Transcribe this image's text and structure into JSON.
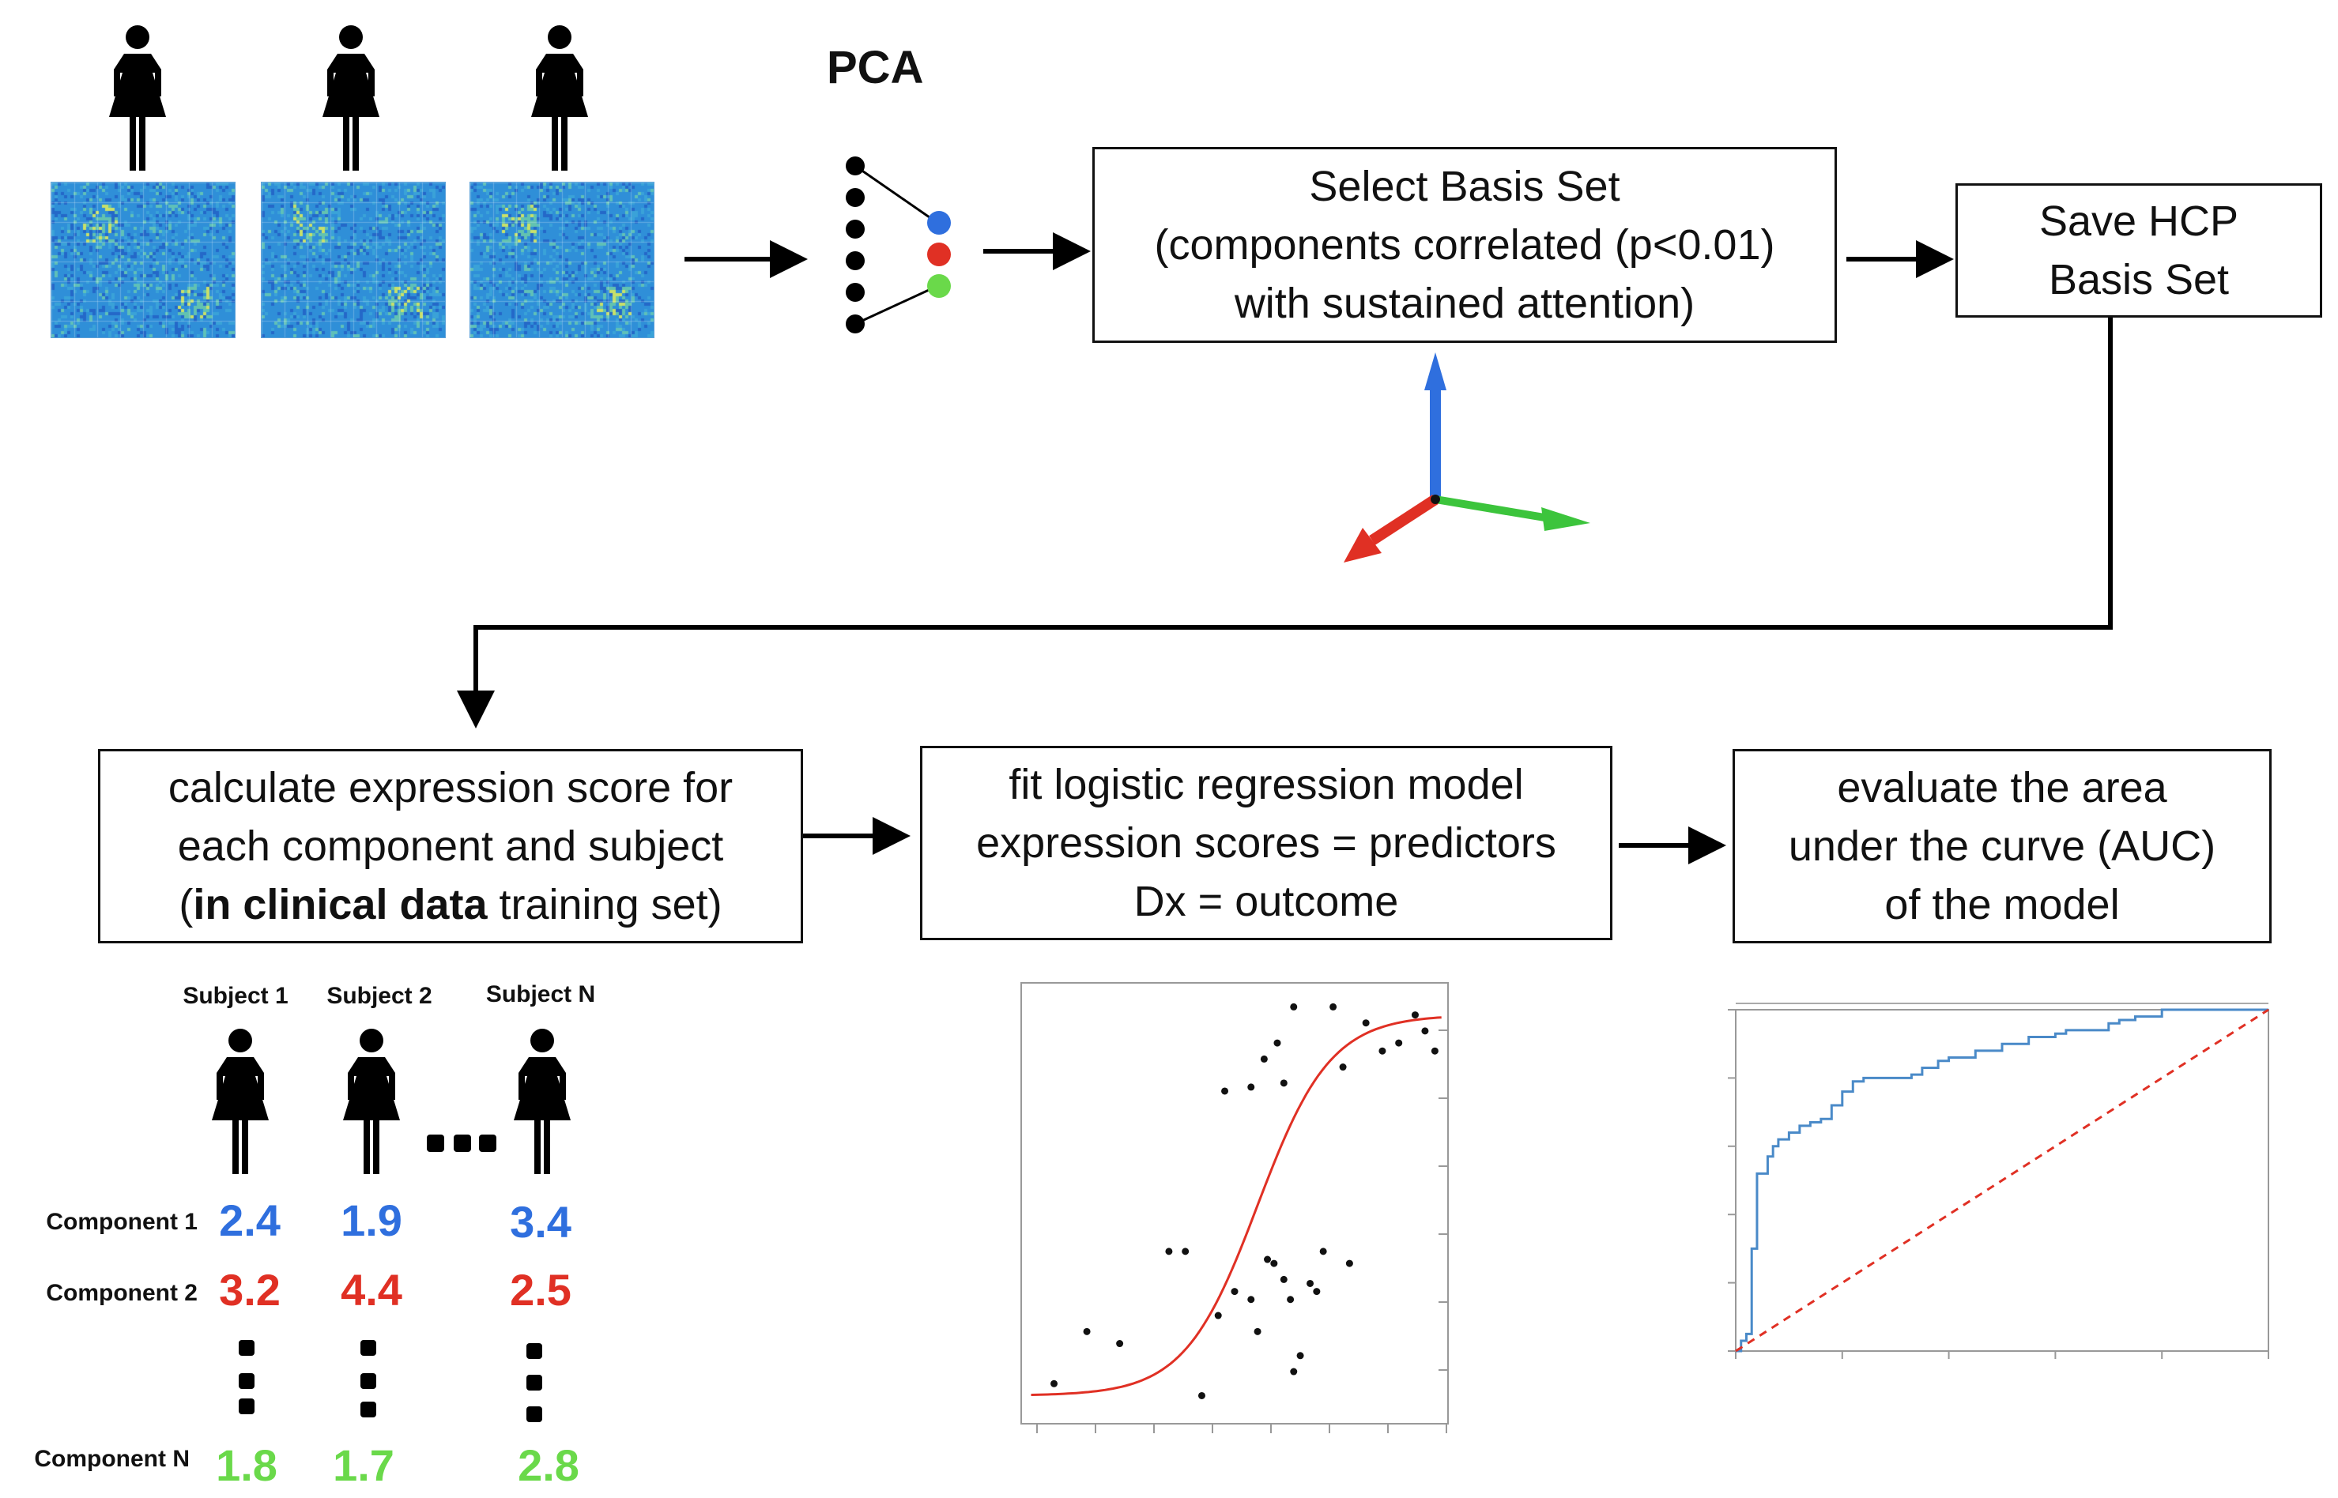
{
  "pca": {
    "title": "PCA"
  },
  "boxes": {
    "select_basis": {
      "lines": [
        "Select Basis Set",
        "(components correlated (p<0.01)",
        "with sustained attention)"
      ]
    },
    "save_hcp": {
      "lines": [
        "Save HCP",
        "Basis Set"
      ]
    },
    "calc_expr": {
      "line1": "calculate expression score for",
      "line2": "each component and subject",
      "line3_pre": "(",
      "line3_bold": "in clinical data",
      "line3_post": " training set)"
    },
    "fit_model": {
      "lines": [
        "fit logistic regression model",
        "expression scores = predictors",
        "Dx = outcome"
      ]
    },
    "evaluate": {
      "lines": [
        "evaluate the area",
        "under the curve (AUC)",
        "of the model"
      ]
    }
  },
  "subjects": [
    "Subject 1",
    "Subject 2",
    "Subject N"
  ],
  "components": [
    {
      "label": "Component 1",
      "values": [
        "2.4",
        "1.9",
        "3.4"
      ],
      "color": "#2f6fde"
    },
    {
      "label": "Component 2",
      "values": [
        "3.2",
        "4.4",
        "2.5"
      ],
      "color": "#e03024"
    },
    {
      "label": "Component N",
      "values": [
        "1.8",
        "1.7",
        "2.8"
      ],
      "color": "#6ad94a"
    }
  ],
  "colors": {
    "blue": "#2f6fde",
    "red": "#e03024",
    "green": "#6ad94a",
    "heatmap_base": "#2f8fd8"
  },
  "icons": [
    "person-icon",
    "arrow-right-icon",
    "arrow-down-icon",
    "axes-3d-icon"
  ],
  "chart_data": [
    {
      "type": "scatter",
      "title": "",
      "xlabel": "",
      "ylabel": "",
      "series": [
        {
          "points": [
            [
              1,
              0.05
            ],
            [
              2,
              0.18
            ],
            [
              3,
              0.15
            ],
            [
              4.5,
              0.38
            ],
            [
              5,
              0.38
            ],
            [
              5.5,
              0.02
            ],
            [
              6,
              0.22
            ],
            [
              6.5,
              0.28
            ],
            [
              7,
              0.26
            ],
            [
              7.2,
              0.18
            ],
            [
              7.5,
              0.36
            ],
            [
              7.7,
              0.35
            ],
            [
              8,
              0.31
            ],
            [
              8.2,
              0.26
            ],
            [
              8.3,
              0.08
            ],
            [
              8.5,
              0.12
            ],
            [
              8.8,
              0.3
            ],
            [
              9,
              0.28
            ],
            [
              9.2,
              0.38
            ],
            [
              10,
              0.35
            ],
            [
              6.2,
              0.78
            ],
            [
              7.0,
              0.79
            ],
            [
              7.4,
              0.86
            ],
            [
              7.8,
              0.9
            ],
            [
              8.0,
              0.8
            ],
            [
              8.3,
              0.99
            ],
            [
              9.5,
              0.99
            ],
            [
              9.8,
              0.84
            ],
            [
              10.5,
              0.95
            ],
            [
              11,
              0.88
            ],
            [
              11.5,
              0.9
            ],
            [
              12,
              0.97
            ],
            [
              12.3,
              0.93
            ],
            [
              12.6,
              0.88
            ]
          ]
        }
      ],
      "curve": {
        "type": "logistic",
        "color": "#e03024"
      }
    },
    {
      "type": "line",
      "title": "",
      "xlabel": "",
      "ylabel": "",
      "series": [
        {
          "name": "",
          "color": "#4a8ac8",
          "x": [
            0,
            0.01,
            0.02,
            0.03,
            0.04,
            0.05,
            0.06,
            0.07,
            0.08,
            0.09,
            0.1,
            0.12,
            0.14,
            0.16,
            0.18,
            0.2,
            0.22,
            0.24,
            0.25,
            0.27,
            0.3,
            0.33,
            0.35,
            0.38,
            0.4,
            0.43,
            0.45,
            0.48,
            0.5,
            0.53,
            0.55,
            0.6,
            0.62,
            0.65,
            0.7,
            0.72,
            0.75,
            0.8,
            0.85,
            0.9,
            0.95,
            1.0
          ],
          "y": [
            0,
            0.03,
            0.05,
            0.3,
            0.52,
            0.52,
            0.57,
            0.6,
            0.62,
            0.62,
            0.64,
            0.66,
            0.67,
            0.68,
            0.72,
            0.76,
            0.79,
            0.8,
            0.8,
            0.8,
            0.8,
            0.81,
            0.83,
            0.85,
            0.86,
            0.86,
            0.88,
            0.88,
            0.9,
            0.9,
            0.92,
            0.93,
            0.94,
            0.94,
            0.96,
            0.97,
            0.98,
            1.0,
            1.0,
            1.0,
            1.0,
            1.0
          ]
        },
        {
          "name": "",
          "color": "#e03024",
          "dashed": true,
          "x": [
            0,
            1
          ],
          "y": [
            0,
            1
          ]
        }
      ],
      "xlim": [
        0,
        1
      ],
      "ylim": [
        0,
        1
      ]
    }
  ]
}
